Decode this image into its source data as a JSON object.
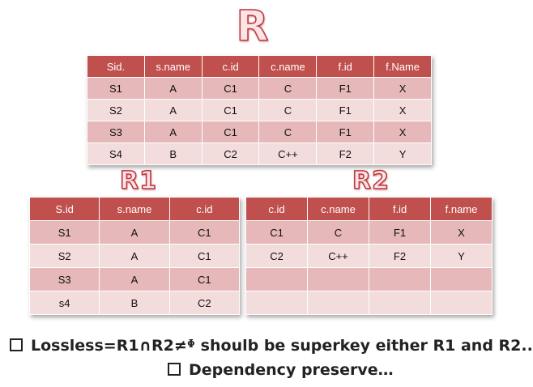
{
  "titles": {
    "r": "R",
    "r1": "R1",
    "r2": "R2"
  },
  "table_r": {
    "headers": [
      "Sid.",
      "s.name",
      "c.id",
      "c.name",
      "f.id",
      "f.Name"
    ],
    "rows": [
      [
        "S1",
        "A",
        "C1",
        "C",
        "F1",
        "X"
      ],
      [
        "S2",
        "A",
        "C1",
        "C",
        "F1",
        "X"
      ],
      [
        "S3",
        "A",
        "C1",
        "C",
        "F1",
        "X"
      ],
      [
        "S4",
        "B",
        "C2",
        "C++",
        "F2",
        "Y"
      ]
    ]
  },
  "table_r1": {
    "headers": [
      "S.id",
      "s.name",
      "c.id"
    ],
    "rows": [
      [
        "S1",
        "A",
        "C1"
      ],
      [
        "S2",
        "A",
        "C1"
      ],
      [
        "S3",
        "A",
        "C1"
      ],
      [
        "s4",
        "B",
        "C2"
      ]
    ]
  },
  "table_r2": {
    "headers": [
      "c.id",
      "c.name",
      "f.id",
      "f.name"
    ],
    "rows": [
      [
        "C1",
        "C",
        "F1",
        "X"
      ],
      [
        "C2",
        "C++",
        "F2",
        "Y"
      ],
      [
        "",
        "",
        "",
        ""
      ],
      [
        "",
        "",
        "",
        ""
      ]
    ]
  },
  "notes": {
    "lossless": "Lossless=R1∩R2≠ᶲ shoulb be superkey either R1 and R2..",
    "dependency": "Dependency preserve…"
  },
  "colors": {
    "header": "#c0504d",
    "row_odd": "#e7b8b9",
    "row_even": "#f3dcdc",
    "title": "#c0393f"
  }
}
